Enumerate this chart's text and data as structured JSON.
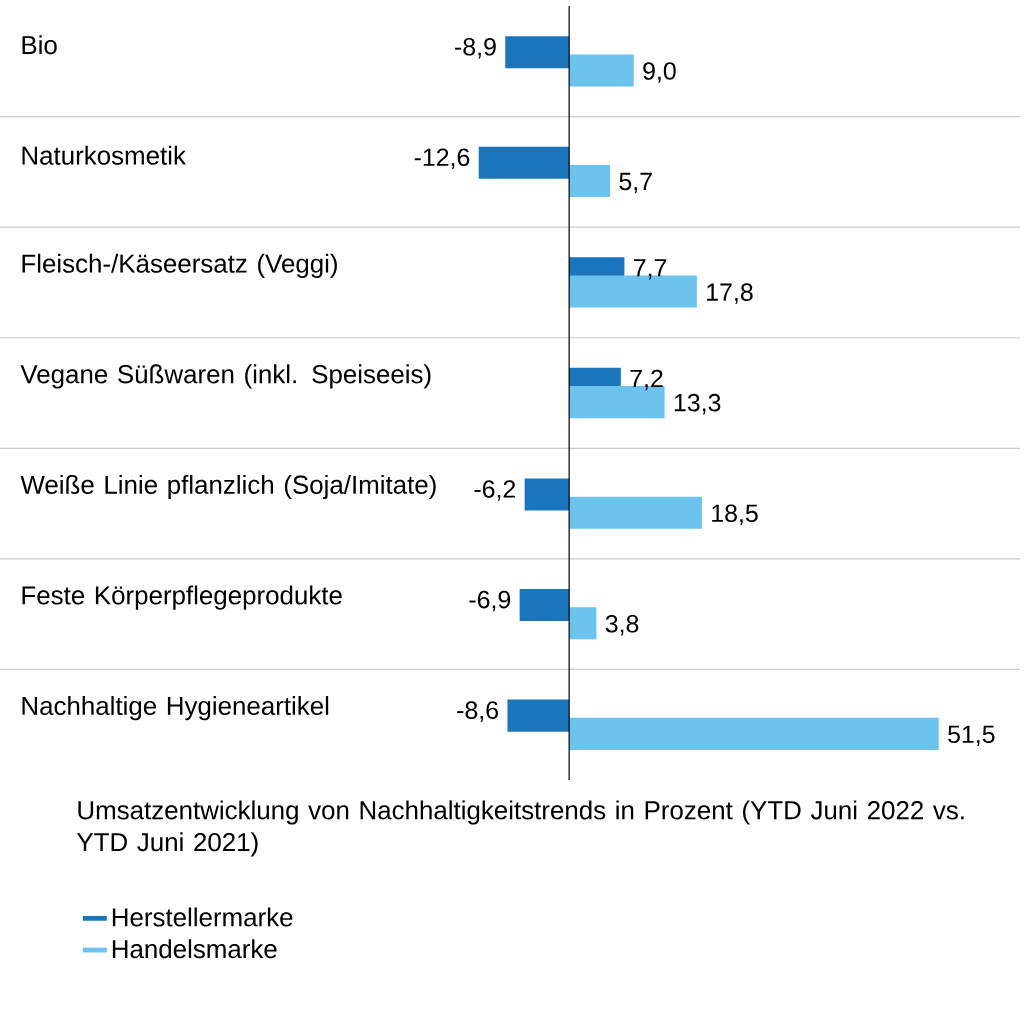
{
  "chart_data": {
    "type": "bar",
    "orientation": "horizontal",
    "legend_title": "Umsatzentwicklung von Nachhaltigkeitstrends in Prozent (YTD Juni 2022 vs. YTD Juni 2021)",
    "categories": [
      "Bio",
      "Naturkosmetik",
      "Fleisch-/Käseersatz (Veggi)",
      "Vegane Süßwaren (inkl. Speiseeis)",
      "Weiße Linie pflanzlich (Soja/Imitate)",
      "Feste Körperpflegeprodukte",
      "Nachhaltige Hygieneartikel"
    ],
    "series": [
      {
        "name": "Herstellermarke",
        "color": "#1a75bc",
        "values": [
          -8.9,
          -12.6,
          7.7,
          7.2,
          -6.2,
          -6.9,
          -8.6
        ],
        "value_labels": [
          "-8,9",
          "-12,6",
          "7,7",
          "7,2",
          "-6,2",
          "-6,9",
          "-8,6"
        ]
      },
      {
        "name": "Handelsmarke",
        "color": "#6cc4ee",
        "values": [
          9.0,
          5.7,
          17.8,
          13.3,
          18.5,
          3.8,
          51.5
        ],
        "value_labels": [
          "9,0",
          "5,7",
          "17,8",
          "13,3",
          "18,5",
          "3,8",
          "51,5"
        ]
      }
    ],
    "grid": "y",
    "legend": "bottom"
  }
}
